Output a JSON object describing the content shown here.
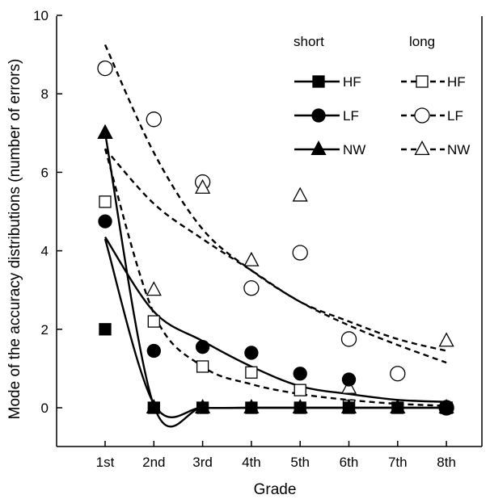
{
  "chart_data": {
    "type": "scatter",
    "title": "",
    "xlabel": "Grade",
    "ylabel": "Mode of the accuracy distributions (number of errors)",
    "categories": [
      "1st",
      "2nd",
      "3rd",
      "4th",
      "5th",
      "6th",
      "7th",
      "8th"
    ],
    "ylim": [
      0,
      10
    ],
    "yticks": [
      0,
      2,
      4,
      6,
      8,
      10
    ],
    "ytick_labels": [
      "0",
      "2",
      "4",
      "6",
      "8",
      "10"
    ],
    "grid": false,
    "legend": {
      "placement": "top-right",
      "column_headers": [
        "short",
        "long"
      ]
    },
    "series": [
      {
        "name": "HF",
        "group": "short",
        "marker": "square",
        "filled": true,
        "values": [
          2.0,
          0,
          0,
          0,
          0,
          0,
          0,
          0
        ],
        "fit": [
          4.3,
          0.1,
          0.0,
          0.0,
          0.0,
          0.0,
          0.0,
          0.0
        ]
      },
      {
        "name": "LF",
        "group": "short",
        "marker": "circle",
        "filled": true,
        "values": [
          4.75,
          1.45,
          1.55,
          1.4,
          0.87,
          0.72,
          null,
          0
        ],
        "fit": [
          4.35,
          2.45,
          1.7,
          1.05,
          0.55,
          0.35,
          0.2,
          0.15
        ]
      },
      {
        "name": "NW",
        "group": "short",
        "marker": "triangle",
        "filled": true,
        "values": [
          7.0,
          0,
          0,
          0,
          0,
          0,
          0,
          0
        ],
        "fit": [
          7.0,
          0.05,
          0.0,
          0.0,
          0.0,
          0.0,
          0.0,
          0.0
        ]
      },
      {
        "name": "HF",
        "group": "long",
        "marker": "square",
        "filled": false,
        "values": [
          5.25,
          2.2,
          1.05,
          0.9,
          0.45,
          0.05,
          null,
          0
        ],
        "fit": [
          6.6,
          2.4,
          1.05,
          0.6,
          0.35,
          0.2,
          0.1,
          0.05
        ]
      },
      {
        "name": "LF",
        "group": "long",
        "marker": "circle",
        "filled": false,
        "values": [
          8.65,
          7.35,
          5.75,
          3.05,
          3.95,
          1.75,
          0.87,
          0
        ],
        "fit": [
          9.25,
          6.5,
          4.55,
          3.5,
          2.7,
          2.1,
          1.6,
          1.15
        ]
      },
      {
        "name": "NW",
        "group": "long",
        "marker": "triangle",
        "filled": false,
        "values": [
          7.0,
          3.0,
          5.6,
          3.75,
          5.4,
          0.5,
          0,
          1.7
        ],
        "fit": [
          6.6,
          5.2,
          4.3,
          3.5,
          2.7,
          2.2,
          1.75,
          1.45
        ]
      }
    ]
  }
}
